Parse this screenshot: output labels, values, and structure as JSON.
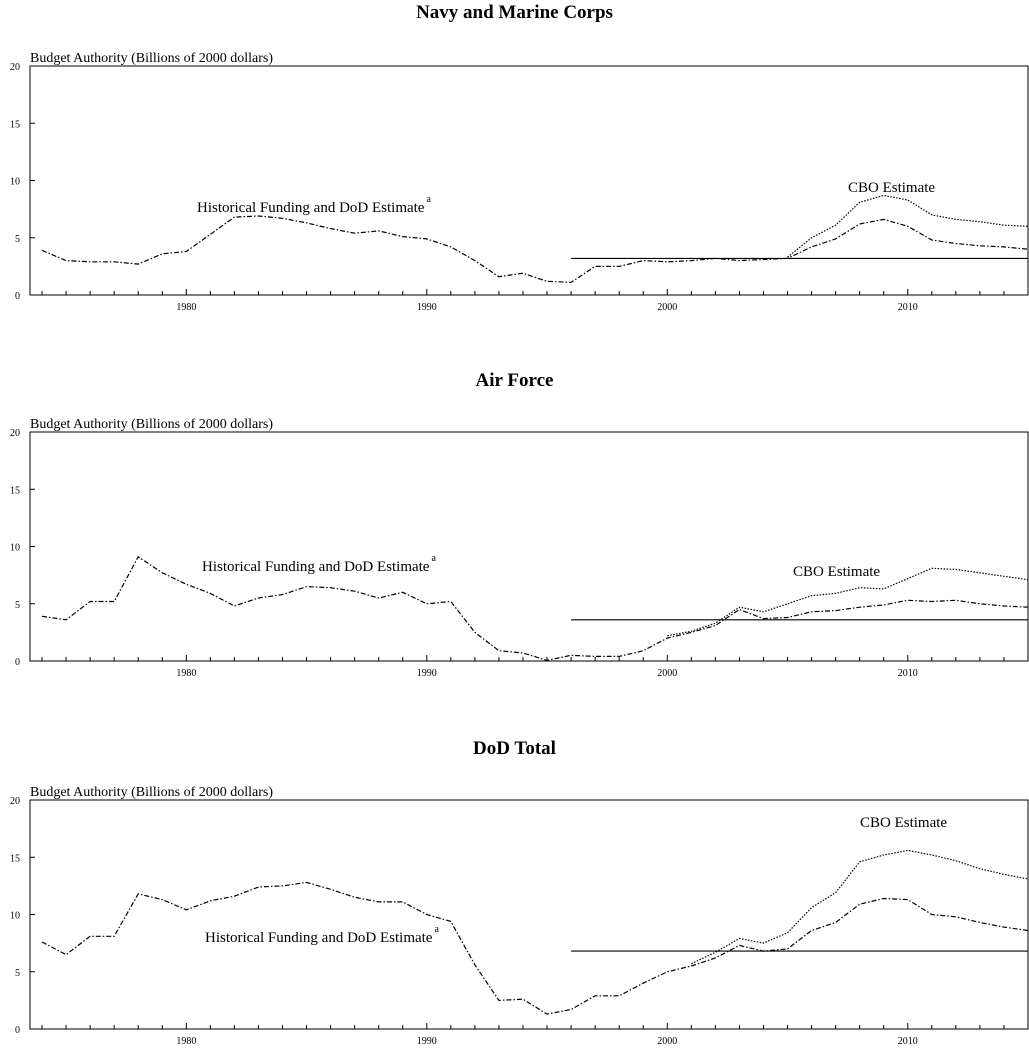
{
  "chart_data": [
    {
      "type": "line",
      "title": "Navy and Marine Corps",
      "ylabel": "Budget Authority (Billions of 2000 dollars)",
      "ylim": [
        0,
        20
      ],
      "xlim": [
        1973.5,
        2015
      ],
      "x_ticks": [
        1980,
        1990,
        2000,
        2010
      ],
      "y_ticks": [
        0,
        5,
        10,
        15,
        20
      ],
      "annotations": {
        "historical": "Historical Funding and DoD Estimate",
        "historical_sup": "a",
        "cbo": "CBO Estimate"
      },
      "series": [
        {
          "style": "dashdot",
          "x": [
            1974,
            1975,
            1976,
            1977,
            1978,
            1979,
            1980,
            1981,
            1982,
            1983,
            1984,
            1985,
            1986,
            1987,
            1988,
            1989,
            1990,
            1991,
            1992,
            1993,
            1994,
            1995,
            1996,
            1997,
            1998,
            1999,
            2000,
            2001,
            2002,
            2003,
            2004,
            2005,
            2006,
            2007,
            2008,
            2009,
            2010,
            2011,
            2012,
            2013,
            2014,
            2015
          ],
          "y": [
            3.9,
            3.0,
            2.9,
            2.9,
            2.7,
            3.6,
            3.8,
            5.3,
            6.8,
            6.9,
            6.7,
            6.3,
            5.8,
            5.4,
            5.6,
            5.1,
            4.9,
            4.2,
            3.0,
            1.6,
            1.9,
            1.2,
            1.1,
            2.5,
            2.5,
            3.0,
            2.9,
            3.0,
            3.2,
            3.0,
            3.1,
            3.2,
            4.2,
            4.9,
            6.2,
            6.6,
            6.0,
            4.8,
            4.5,
            4.3,
            4.2,
            4.0
          ]
        },
        {
          "style": "dotted",
          "x": [
            2005,
            2006,
            2007,
            2008,
            2009,
            2010,
            2011,
            2012,
            2013,
            2014,
            2015
          ],
          "y": [
            3.3,
            5.0,
            6.1,
            8.1,
            8.7,
            8.3,
            7.0,
            6.6,
            6.4,
            6.1,
            6.0
          ]
        },
        {
          "style": "solid",
          "x": [
            1996,
            2015
          ],
          "y": [
            3.2,
            3.2
          ]
        }
      ]
    },
    {
      "type": "line",
      "title": "Air Force",
      "ylabel": "Budget Authority (Billions of 2000 dollars)",
      "ylim": [
        0,
        20
      ],
      "xlim": [
        1973.5,
        2015
      ],
      "x_ticks": [
        1980,
        1990,
        2000,
        2010
      ],
      "y_ticks": [
        0,
        5,
        10,
        15,
        20
      ],
      "annotations": {
        "historical": "Historical Funding and DoD Estimate",
        "historical_sup": "a",
        "cbo": "CBO Estimate"
      },
      "series": [
        {
          "style": "dashdot",
          "x": [
            1974,
            1975,
            1976,
            1977,
            1978,
            1979,
            1980,
            1981,
            1982,
            1983,
            1984,
            1985,
            1986,
            1987,
            1988,
            1989,
            1990,
            1991,
            1992,
            1993,
            1994,
            1995,
            1996,
            1997,
            1998,
            1999,
            2000,
            2001,
            2002,
            2003,
            2004,
            2005,
            2006,
            2007,
            2008,
            2009,
            2010,
            2011,
            2012,
            2013,
            2014,
            2015
          ],
          "y": [
            3.9,
            3.6,
            5.2,
            5.2,
            9.1,
            7.7,
            6.7,
            5.9,
            4.8,
            5.5,
            5.8,
            6.5,
            6.4,
            6.1,
            5.5,
            6.0,
            5.0,
            5.2,
            2.5,
            0.9,
            0.7,
            0.05,
            0.5,
            0.4,
            0.4,
            0.9,
            2.0,
            2.5,
            3.1,
            4.5,
            3.7,
            3.8,
            4.3,
            4.4,
            4.7,
            4.9,
            5.3,
            5.2,
            5.3,
            5.0,
            4.8,
            4.7
          ]
        },
        {
          "style": "dotted",
          "x": [
            2000,
            2001,
            2002,
            2003,
            2004,
            2005,
            2006,
            2007,
            2008,
            2009,
            2010,
            2011,
            2012,
            2013,
            2014,
            2015
          ],
          "y": [
            2.2,
            2.6,
            3.3,
            4.7,
            4.3,
            5.0,
            5.7,
            5.9,
            6.4,
            6.3,
            7.2,
            8.1,
            8.0,
            7.7,
            7.4,
            7.1
          ]
        },
        {
          "style": "solid",
          "x": [
            1996,
            2015
          ],
          "y": [
            3.6,
            3.6
          ]
        }
      ]
    },
    {
      "type": "line",
      "title": "DoD Total",
      "ylabel": "Budget Authority (Billions of 2000 dollars)",
      "ylim": [
        0,
        20
      ],
      "xlim": [
        1973.5,
        2015
      ],
      "x_ticks": [
        1980,
        1990,
        2000,
        2010
      ],
      "y_ticks": [
        0,
        5,
        10,
        15,
        20
      ],
      "annotations": {
        "historical": "Historical Funding and DoD Estimate",
        "historical_sup": "a",
        "cbo": "CBO Estimate"
      },
      "series": [
        {
          "style": "dashdot",
          "x": [
            1974,
            1975,
            1976,
            1977,
            1978,
            1979,
            1980,
            1981,
            1982,
            1983,
            1984,
            1985,
            1986,
            1987,
            1988,
            1989,
            1990,
            1991,
            1992,
            1993,
            1994,
            1995,
            1996,
            1997,
            1998,
            1999,
            2000,
            2001,
            2002,
            2003,
            2004,
            2005,
            2006,
            2007,
            2008,
            2009,
            2010,
            2011,
            2012,
            2013,
            2014,
            2015
          ],
          "y": [
            7.6,
            6.5,
            8.1,
            8.1,
            11.8,
            11.3,
            10.4,
            11.2,
            11.6,
            12.4,
            12.5,
            12.8,
            12.2,
            11.5,
            11.1,
            11.1,
            10.0,
            9.4,
            5.6,
            2.5,
            2.6,
            1.3,
            1.7,
            2.9,
            2.9,
            4.0,
            5.0,
            5.5,
            6.2,
            7.3,
            6.8,
            7.0,
            8.6,
            9.3,
            10.9,
            11.4,
            11.3,
            10.0,
            9.8,
            9.3,
            8.9,
            8.6
          ]
        },
        {
          "style": "dotted",
          "x": [
            2001,
            2002,
            2003,
            2004,
            2005,
            2006,
            2007,
            2008,
            2009,
            2010,
            2011,
            2012,
            2013,
            2014,
            2015
          ],
          "y": [
            5.7,
            6.7,
            7.9,
            7.5,
            8.4,
            10.6,
            11.9,
            14.6,
            15.2,
            15.6,
            15.2,
            14.7,
            14.0,
            13.5,
            13.1
          ]
        },
        {
          "style": "solid",
          "x": [
            1996,
            2015
          ],
          "y": [
            6.8,
            6.8
          ]
        }
      ]
    }
  ]
}
